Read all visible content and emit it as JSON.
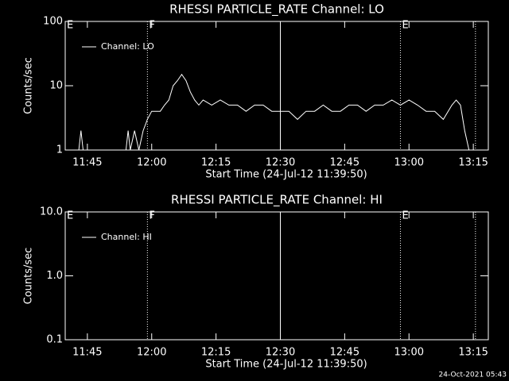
{
  "chart_data": [
    {
      "type": "line",
      "title": "RHESSI PARTICLE_RATE Channel: LO",
      "xlabel": "Start Time (24-Jul-12 11:39:50)",
      "ylabel": "Counts/sec",
      "log_y": true,
      "ylim": [
        1,
        100
      ],
      "yticks": [
        1,
        10,
        100
      ],
      "xlim": [
        "11:39:50",
        "13:18:30"
      ],
      "xticks": [
        "11:45",
        "12:00",
        "12:15",
        "12:30",
        "12:45",
        "13:00",
        "13:15"
      ],
      "x": [
        "11:43:00",
        "11:43:30",
        "11:44:00",
        "11:50:00",
        "11:54:00",
        "11:54:30",
        "11:55:00",
        "11:56:00",
        "11:57:00",
        "11:58:00",
        "11:59:00",
        "12:00:00",
        "12:02:00",
        "12:03:00",
        "12:04:00",
        "12:05:00",
        "12:06:00",
        "12:07:00",
        "12:08:00",
        "12:09:00",
        "12:10:00",
        "12:11:00",
        "12:12:00",
        "12:14:00",
        "12:16:00",
        "12:18:00",
        "12:20:00",
        "12:22:00",
        "12:24:00",
        "12:26:00",
        "12:28:00",
        "12:30:00",
        "12:32:00",
        "12:34:00",
        "12:36:00",
        "12:38:00",
        "12:40:00",
        "12:42:00",
        "12:44:00",
        "12:46:00",
        "12:48:00",
        "12:50:00",
        "12:52:00",
        "12:54:00",
        "12:56:00",
        "12:58:00",
        "13:00:00",
        "13:02:00",
        "13:04:00",
        "13:06:00",
        "13:08:00",
        "13:10:00",
        "13:11:00",
        "13:12:00",
        "13:13:00",
        "13:14:00",
        "13:15:00"
      ],
      "series": [
        {
          "name": "Channel: LO",
          "color": "#ffffff",
          "values": [
            1,
            2,
            1,
            null,
            1,
            2,
            1,
            2,
            1,
            2,
            3,
            4,
            4,
            5,
            6,
            10,
            12,
            15,
            12,
            8,
            6,
            5,
            6,
            5,
            6,
            5,
            5,
            4,
            5,
            5,
            4,
            4,
            4,
            3,
            4,
            4,
            5,
            4,
            4,
            5,
            5,
            4,
            5,
            5,
            6,
            5,
            6,
            5,
            4,
            4,
            3,
            5,
            6,
            5,
            2,
            1,
            1
          ]
        }
      ],
      "vlines": [
        {
          "x": "11:39:50",
          "style": "solid",
          "label": "E"
        },
        {
          "x": "11:59:00",
          "style": "dotted",
          "label": "F"
        },
        {
          "x": "12:30:00",
          "style": "solid"
        },
        {
          "x": "12:58:00",
          "style": "dotted",
          "label": "E"
        },
        {
          "x": "13:15:30",
          "style": "dotted"
        }
      ]
    },
    {
      "type": "line",
      "title": "RHESSI PARTICLE_RATE Channel: HI",
      "xlabel": "Start Time (24-Jul-12 11:39:50)",
      "ylabel": "Counts/sec",
      "log_y": true,
      "ylim": [
        0.1,
        10
      ],
      "yticks": [
        0.1,
        {
          "value": 1,
          "label": "1.0"
        },
        {
          "value": 10,
          "label": "10.0"
        }
      ],
      "xlim": [
        "11:39:50",
        "13:18:30"
      ],
      "xticks": [
        "11:45",
        "12:00",
        "12:15",
        "12:30",
        "12:45",
        "13:00",
        "13:15"
      ],
      "x": [],
      "series": [
        {
          "name": "Channel: HI",
          "color": "#ffffff",
          "values": []
        }
      ],
      "vlines": [
        {
          "x": "11:39:50",
          "style": "solid",
          "label": "E"
        },
        {
          "x": "11:59:00",
          "style": "dotted",
          "label": "F"
        },
        {
          "x": "12:30:00",
          "style": "solid"
        },
        {
          "x": "12:58:00",
          "style": "dotted",
          "label": "E"
        },
        {
          "x": "13:15:30",
          "style": "dotted"
        }
      ]
    }
  ],
  "footer": "24-Oct-2021 05:43"
}
